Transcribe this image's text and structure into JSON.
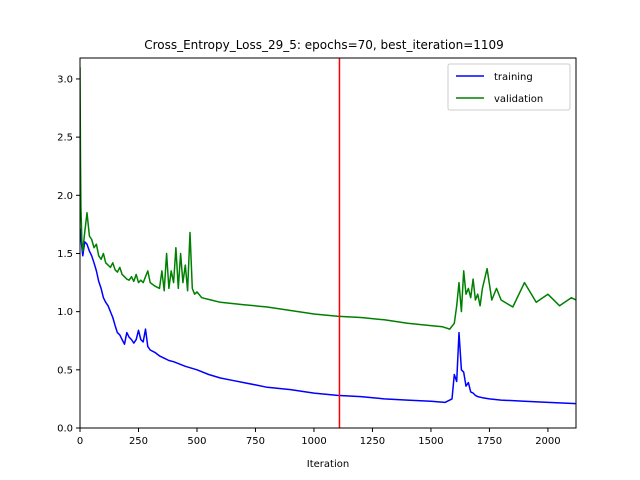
{
  "chart_data": {
    "type": "line",
    "title": "Cross_Entropy_Loss_29_5: epochs=70, best_iteration=1109",
    "xlabel": "Iteration",
    "ylabel": "",
    "xlim": [
      0,
      2120
    ],
    "ylim": [
      0,
      3.18
    ],
    "x_ticks": [
      0,
      250,
      500,
      750,
      1000,
      1250,
      1500,
      1750,
      2000
    ],
    "x_tick_labels": [
      "0",
      "250",
      "500",
      "750",
      "1000",
      "1250",
      "1500",
      "1750",
      "2000"
    ],
    "y_ticks": [
      0.0,
      0.5,
      1.0,
      1.5,
      2.0,
      2.5,
      3.0
    ],
    "y_tick_labels": [
      "0.0",
      "0.5",
      "1.0",
      "1.5",
      "2.0",
      "2.5",
      "3.0"
    ],
    "grid": false,
    "legend_position": "top-right",
    "vline": {
      "x": 1109,
      "color": "#ff0000"
    },
    "series": [
      {
        "name": "training",
        "color": "#0000ff",
        "x": [
          0,
          3,
          8,
          12,
          20,
          30,
          40,
          50,
          60,
          70,
          80,
          90,
          100,
          110,
          120,
          130,
          140,
          150,
          160,
          170,
          180,
          190,
          200,
          210,
          220,
          230,
          240,
          250,
          260,
          270,
          280,
          290,
          300,
          320,
          340,
          360,
          380,
          400,
          450,
          500,
          550,
          600,
          650,
          700,
          750,
          800,
          900,
          1000,
          1100,
          1200,
          1300,
          1400,
          1500,
          1560,
          1590,
          1600,
          1610,
          1620,
          1630,
          1640,
          1650,
          1660,
          1670,
          1680,
          1690,
          1700,
          1720,
          1750,
          1800,
          1900,
          2000,
          2120
        ],
        "y": [
          1.72,
          1.66,
          1.55,
          1.48,
          1.6,
          1.58,
          1.52,
          1.48,
          1.42,
          1.35,
          1.26,
          1.2,
          1.12,
          1.08,
          1.05,
          1.0,
          0.95,
          0.88,
          0.82,
          0.8,
          0.76,
          0.72,
          0.82,
          0.78,
          0.76,
          0.73,
          0.76,
          0.84,
          0.76,
          0.74,
          0.85,
          0.7,
          0.67,
          0.65,
          0.62,
          0.6,
          0.58,
          0.57,
          0.53,
          0.5,
          0.46,
          0.43,
          0.41,
          0.39,
          0.37,
          0.35,
          0.33,
          0.3,
          0.28,
          0.27,
          0.25,
          0.24,
          0.23,
          0.22,
          0.25,
          0.46,
          0.4,
          0.82,
          0.5,
          0.48,
          0.36,
          0.39,
          0.31,
          0.3,
          0.28,
          0.27,
          0.26,
          0.25,
          0.24,
          0.23,
          0.22,
          0.21
        ]
      },
      {
        "name": "validation",
        "color": "#008000",
        "x": [
          0,
          2,
          4,
          8,
          12,
          20,
          30,
          40,
          50,
          60,
          70,
          80,
          90,
          100,
          110,
          120,
          130,
          140,
          150,
          160,
          170,
          180,
          190,
          200,
          210,
          220,
          230,
          240,
          250,
          260,
          270,
          280,
          290,
          300,
          320,
          340,
          350,
          360,
          370,
          380,
          390,
          400,
          410,
          420,
          430,
          440,
          450,
          460,
          470,
          480,
          490,
          500,
          520,
          560,
          600,
          700,
          800,
          900,
          1000,
          1100,
          1200,
          1300,
          1400,
          1500,
          1550,
          1580,
          1600,
          1610,
          1620,
          1630,
          1640,
          1650,
          1660,
          1670,
          1680,
          1690,
          1700,
          1710,
          1720,
          1740,
          1760,
          1780,
          1800,
          1850,
          1900,
          1950,
          2000,
          2050,
          2100,
          2120
        ],
        "y": [
          3.1,
          2.3,
          1.9,
          1.6,
          1.52,
          1.68,
          1.85,
          1.65,
          1.62,
          1.55,
          1.58,
          1.48,
          1.45,
          1.5,
          1.42,
          1.4,
          1.38,
          1.42,
          1.36,
          1.34,
          1.38,
          1.32,
          1.3,
          1.28,
          1.27,
          1.3,
          1.26,
          1.32,
          1.25,
          1.27,
          1.25,
          1.3,
          1.35,
          1.25,
          1.22,
          1.2,
          1.35,
          1.18,
          1.5,
          1.2,
          1.35,
          1.25,
          1.55,
          1.2,
          1.5,
          1.25,
          1.4,
          1.18,
          1.68,
          1.2,
          1.15,
          1.17,
          1.12,
          1.1,
          1.08,
          1.06,
          1.04,
          1.01,
          0.98,
          0.96,
          0.95,
          0.93,
          0.9,
          0.88,
          0.87,
          0.85,
          0.9,
          1.05,
          1.25,
          1.0,
          1.35,
          1.15,
          1.2,
          1.12,
          1.28,
          1.1,
          1.15,
          1.05,
          1.2,
          1.37,
          1.1,
          1.2,
          1.1,
          1.04,
          1.25,
          1.08,
          1.15,
          1.05,
          1.12,
          1.1
        ]
      }
    ]
  }
}
